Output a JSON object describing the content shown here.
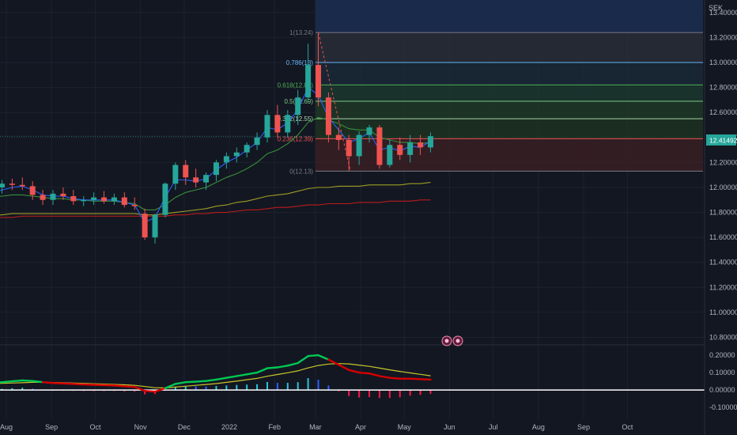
{
  "currency": "SEK",
  "last_price_label": "12.41492",
  "colors": {
    "background": "#131722",
    "grid": "#1e222d",
    "up": "#26a69a",
    "down": "#ef5350",
    "ema_blue": "#2962ff",
    "ma_green": "#388e3c",
    "ma_yellow": "#9e9d24",
    "ma_red": "#b71c1c",
    "macd_green": "#00c853",
    "macd_red": "#d50000",
    "signal": "#c6c62a",
    "hist_cyan": "#26c6da",
    "hist_blue": "#2962ff",
    "hist_red": "#ff1744"
  },
  "chart_data": {
    "type": "candlestick",
    "interval": "weekly",
    "x_tick_labels": [
      "Aug",
      "Sep",
      "Oct",
      "Nov",
      "Dec",
      "2022",
      "Feb",
      "Mar",
      "Apr",
      "May",
      "Jun",
      "Jul",
      "Aug",
      "Sep",
      "Oct"
    ],
    "price_axis": {
      "labels": [
        "13.40000",
        "13.20000",
        "13.00000",
        "12.80000",
        "12.60000",
        "12.40000",
        "12.20000",
        "12.00000",
        "11.80000",
        "11.60000",
        "11.40000",
        "11.20000",
        "11.00000",
        "10.80000"
      ],
      "values": [
        13.4,
        13.2,
        13.0,
        12.8,
        12.6,
        12.4,
        12.2,
        12.0,
        11.8,
        11.6,
        11.4,
        11.2,
        11.0,
        10.8
      ],
      "range": [
        10.74,
        13.5
      ]
    },
    "candles": [
      {
        "date": "2021-07-19",
        "o": 11.96,
        "h": 12.04,
        "l": 11.9,
        "c": 12.0
      },
      {
        "date": "2021-07-26",
        "o": 12.0,
        "h": 12.06,
        "l": 11.95,
        "c": 12.03
      },
      {
        "date": "2021-08-02",
        "o": 12.03,
        "h": 12.07,
        "l": 11.98,
        "c": 12.02
      },
      {
        "date": "2021-08-09",
        "o": 12.02,
        "h": 12.08,
        "l": 11.98,
        "c": 12.01
      },
      {
        "date": "2021-08-16",
        "o": 12.01,
        "h": 12.05,
        "l": 11.9,
        "c": 11.94
      },
      {
        "date": "2021-08-23",
        "o": 11.94,
        "h": 11.98,
        "l": 11.86,
        "c": 11.9
      },
      {
        "date": "2021-08-30",
        "o": 11.9,
        "h": 11.98,
        "l": 11.86,
        "c": 11.95
      },
      {
        "date": "2021-09-06",
        "o": 11.95,
        "h": 12.0,
        "l": 11.9,
        "c": 11.93
      },
      {
        "date": "2021-09-13",
        "o": 11.93,
        "h": 11.98,
        "l": 11.86,
        "c": 11.89
      },
      {
        "date": "2021-09-20",
        "o": 11.89,
        "h": 11.93,
        "l": 11.85,
        "c": 11.9
      },
      {
        "date": "2021-09-27",
        "o": 11.9,
        "h": 11.96,
        "l": 11.86,
        "c": 11.92
      },
      {
        "date": "2021-10-04",
        "o": 11.92,
        "h": 11.97,
        "l": 11.87,
        "c": 11.89
      },
      {
        "date": "2021-10-11",
        "o": 11.89,
        "h": 11.95,
        "l": 11.86,
        "c": 11.92
      },
      {
        "date": "2021-10-18",
        "o": 11.92,
        "h": 11.96,
        "l": 11.84,
        "c": 11.86
      },
      {
        "date": "2021-10-25",
        "o": 11.86,
        "h": 11.92,
        "l": 11.82,
        "c": 11.85
      },
      {
        "date": "2021-11-01",
        "o": 11.79,
        "h": 11.83,
        "l": 11.58,
        "c": 11.6
      },
      {
        "date": "2021-11-08",
        "o": 11.6,
        "h": 11.79,
        "l": 11.55,
        "c": 11.78
      },
      {
        "date": "2021-11-15",
        "o": 11.78,
        "h": 12.04,
        "l": 11.76,
        "c": 12.03
      },
      {
        "date": "2021-11-22",
        "o": 12.03,
        "h": 12.2,
        "l": 11.98,
        "c": 12.18
      },
      {
        "date": "2021-11-29",
        "o": 12.18,
        "h": 12.22,
        "l": 12.02,
        "c": 12.08
      },
      {
        "date": "2021-12-06",
        "o": 12.08,
        "h": 12.15,
        "l": 12.0,
        "c": 12.04
      },
      {
        "date": "2021-12-13",
        "o": 12.04,
        "h": 12.12,
        "l": 11.98,
        "c": 12.1
      },
      {
        "date": "2021-12-20",
        "o": 12.1,
        "h": 12.22,
        "l": 12.05,
        "c": 12.2
      },
      {
        "date": "2021-12-27",
        "o": 12.2,
        "h": 12.28,
        "l": 12.15,
        "c": 12.25
      },
      {
        "date": "2022-01-03",
        "o": 12.25,
        "h": 12.32,
        "l": 12.2,
        "c": 12.28
      },
      {
        "date": "2022-01-10",
        "o": 12.28,
        "h": 12.36,
        "l": 12.24,
        "c": 12.34
      },
      {
        "date": "2022-01-17",
        "o": 12.34,
        "h": 12.44,
        "l": 12.3,
        "c": 12.4
      },
      {
        "date": "2022-01-24",
        "o": 12.4,
        "h": 12.62,
        "l": 12.36,
        "c": 12.58
      },
      {
        "date": "2022-01-31",
        "o": 12.58,
        "h": 12.66,
        "l": 12.4,
        "c": 12.44
      },
      {
        "date": "2022-02-07",
        "o": 12.44,
        "h": 12.62,
        "l": 12.4,
        "c": 12.58
      },
      {
        "date": "2022-02-14",
        "o": 12.58,
        "h": 12.78,
        "l": 12.5,
        "c": 12.72
      },
      {
        "date": "2022-02-21",
        "o": 12.72,
        "h": 13.15,
        "l": 12.68,
        "c": 12.98
      },
      {
        "date": "2022-02-28",
        "o": 12.98,
        "h": 13.24,
        "l": 12.65,
        "c": 12.72
      },
      {
        "date": "2022-03-07",
        "o": 12.72,
        "h": 12.76,
        "l": 12.36,
        "c": 12.42
      },
      {
        "date": "2022-03-14",
        "o": 12.42,
        "h": 12.48,
        "l": 12.3,
        "c": 12.38
      },
      {
        "date": "2022-03-21",
        "o": 12.38,
        "h": 12.42,
        "l": 12.13,
        "c": 12.25
      },
      {
        "date": "2022-03-28",
        "o": 12.25,
        "h": 12.45,
        "l": 12.18,
        "c": 12.42
      },
      {
        "date": "2022-04-04",
        "o": 12.42,
        "h": 12.5,
        "l": 12.36,
        "c": 12.48
      },
      {
        "date": "2022-04-11",
        "o": 12.48,
        "h": 12.5,
        "l": 12.15,
        "c": 12.18
      },
      {
        "date": "2022-04-18",
        "o": 12.18,
        "h": 12.38,
        "l": 12.16,
        "c": 12.34
      },
      {
        "date": "2022-04-25",
        "o": 12.34,
        "h": 12.4,
        "l": 12.22,
        "c": 12.26
      },
      {
        "date": "2022-05-02",
        "o": 12.26,
        "h": 12.42,
        "l": 12.2,
        "c": 12.36
      },
      {
        "date": "2022-05-09",
        "o": 12.36,
        "h": 12.42,
        "l": 12.26,
        "c": 12.32
      },
      {
        "date": "2022-05-16",
        "o": 12.32,
        "h": 12.44,
        "l": 12.28,
        "c": 12.41
      }
    ],
    "moving_averages": [
      {
        "name": "EMA blue",
        "color": "#2962ff",
        "values": [
          11.96,
          11.98,
          12.0,
          12.01,
          11.98,
          11.94,
          11.93,
          11.93,
          11.91,
          11.9,
          11.9,
          11.9,
          11.9,
          11.88,
          11.86,
          11.72,
          11.76,
          11.92,
          12.06,
          12.06,
          12.05,
          12.07,
          12.14,
          12.2,
          12.24,
          12.3,
          12.36,
          12.48,
          12.46,
          12.52,
          12.62,
          12.8,
          12.74,
          12.56,
          12.46,
          12.36,
          12.39,
          12.44,
          12.3,
          12.32,
          12.29,
          12.33,
          12.32,
          12.37
        ]
      },
      {
        "name": "MA green",
        "color": "#388e3c",
        "values": [
          11.92,
          11.93,
          11.94,
          11.94,
          11.93,
          11.92,
          11.91,
          11.91,
          11.9,
          11.9,
          11.89,
          11.89,
          11.89,
          11.88,
          11.87,
          11.82,
          11.82,
          11.86,
          11.92,
          11.96,
          11.98,
          12.0,
          12.04,
          12.08,
          12.11,
          12.15,
          12.2,
          12.27,
          12.3,
          12.35,
          12.42,
          12.52,
          12.56,
          12.54,
          12.51,
          12.47,
          12.46,
          12.46,
          12.4,
          12.38,
          12.36,
          12.36,
          12.35,
          12.36
        ]
      },
      {
        "name": "MA yellow",
        "color": "#9e9d24",
        "values": [
          11.78,
          11.78,
          11.79,
          11.79,
          11.79,
          11.79,
          11.79,
          11.79,
          11.79,
          11.79,
          11.79,
          11.79,
          11.79,
          11.79,
          11.79,
          11.78,
          11.78,
          11.79,
          11.8,
          11.81,
          11.82,
          11.83,
          11.85,
          11.86,
          11.88,
          11.89,
          11.91,
          11.93,
          11.94,
          11.95,
          11.97,
          11.99,
          12.0,
          12.0,
          12.01,
          12.01,
          12.01,
          12.02,
          12.02,
          12.02,
          12.02,
          12.03,
          12.03,
          12.04
        ]
      },
      {
        "name": "MA red",
        "color": "#b71c1c",
        "values": [
          11.76,
          11.76,
          11.76,
          11.77,
          11.77,
          11.77,
          11.77,
          11.77,
          11.77,
          11.77,
          11.77,
          11.77,
          11.77,
          11.77,
          11.77,
          11.77,
          11.77,
          11.77,
          11.78,
          11.78,
          11.79,
          11.79,
          11.8,
          11.8,
          11.81,
          11.82,
          11.82,
          11.83,
          11.84,
          11.84,
          11.85,
          11.86,
          11.86,
          11.87,
          11.87,
          11.87,
          11.88,
          11.88,
          11.88,
          11.89,
          11.89,
          11.89,
          11.9,
          11.9
        ]
      }
    ],
    "fibonacci": {
      "levels": [
        {
          "ratio": 1,
          "price": 13.24,
          "label": "1(13.24)",
          "color": "#787b86"
        },
        {
          "ratio": 0.786,
          "price": 13.0,
          "label": "0.786(13)",
          "color": "#64b5f6"
        },
        {
          "ratio": 0.618,
          "price": 12.82,
          "label": "0.618(12.82)",
          "color": "#4caf50"
        },
        {
          "ratio": 0.5,
          "price": 12.69,
          "label": "0.5(12.69)",
          "color": "#81c784"
        },
        {
          "ratio": 0.382,
          "price": 12.55,
          "label": "0.382(12.55)",
          "color": "#a5d6a7"
        },
        {
          "ratio": 0.236,
          "price": 12.39,
          "label": "0.236(12.39)",
          "color": "#ef5350"
        },
        {
          "ratio": 0,
          "price": 12.13,
          "label": "0(12.13)",
          "color": "#787b86"
        }
      ],
      "extension_top": 13.5
    },
    "macd": {
      "axis_labels": [
        "0.20000",
        "0.10000",
        "0.00000",
        "-0.10000"
      ],
      "axis_values": [
        0.2,
        0.1,
        0.0,
        -0.1
      ],
      "range": [
        -0.145,
        0.255
      ],
      "macd_line": [
        0.04,
        0.045,
        0.05,
        0.055,
        0.052,
        0.045,
        0.04,
        0.038,
        0.035,
        0.032,
        0.03,
        0.028,
        0.026,
        0.022,
        0.018,
        -0.005,
        -0.01,
        0.01,
        0.035,
        0.045,
        0.048,
        0.052,
        0.06,
        0.07,
        0.08,
        0.09,
        0.1,
        0.125,
        0.13,
        0.14,
        0.155,
        0.195,
        0.2,
        0.175,
        0.145,
        0.115,
        0.1,
        0.095,
        0.08,
        0.07,
        0.065,
        0.065,
        0.062,
        0.06
      ],
      "signal_line": [
        0.035,
        0.038,
        0.04,
        0.042,
        0.044,
        0.044,
        0.043,
        0.042,
        0.04,
        0.038,
        0.036,
        0.034,
        0.032,
        0.03,
        0.027,
        0.02,
        0.013,
        0.012,
        0.017,
        0.022,
        0.027,
        0.032,
        0.037,
        0.044,
        0.051,
        0.059,
        0.067,
        0.079,
        0.089,
        0.099,
        0.11,
        0.127,
        0.141,
        0.149,
        0.152,
        0.15,
        0.143,
        0.136,
        0.126,
        0.116,
        0.107,
        0.098,
        0.09,
        0.082
      ],
      "histogram": [
        0.005,
        0.007,
        0.01,
        0.013,
        0.008,
        0.001,
        -0.003,
        -0.004,
        -0.005,
        -0.006,
        -0.006,
        -0.006,
        -0.006,
        -0.008,
        -0.009,
        -0.025,
        -0.023,
        -0.002,
        0.018,
        0.023,
        0.021,
        0.02,
        0.023,
        0.026,
        0.029,
        0.031,
        0.033,
        0.046,
        0.041,
        0.041,
        0.045,
        0.068,
        0.059,
        0.026,
        -0.007,
        -0.035,
        -0.043,
        -0.041,
        -0.046,
        -0.046,
        -0.042,
        -0.033,
        -0.028,
        -0.022
      ]
    }
  }
}
